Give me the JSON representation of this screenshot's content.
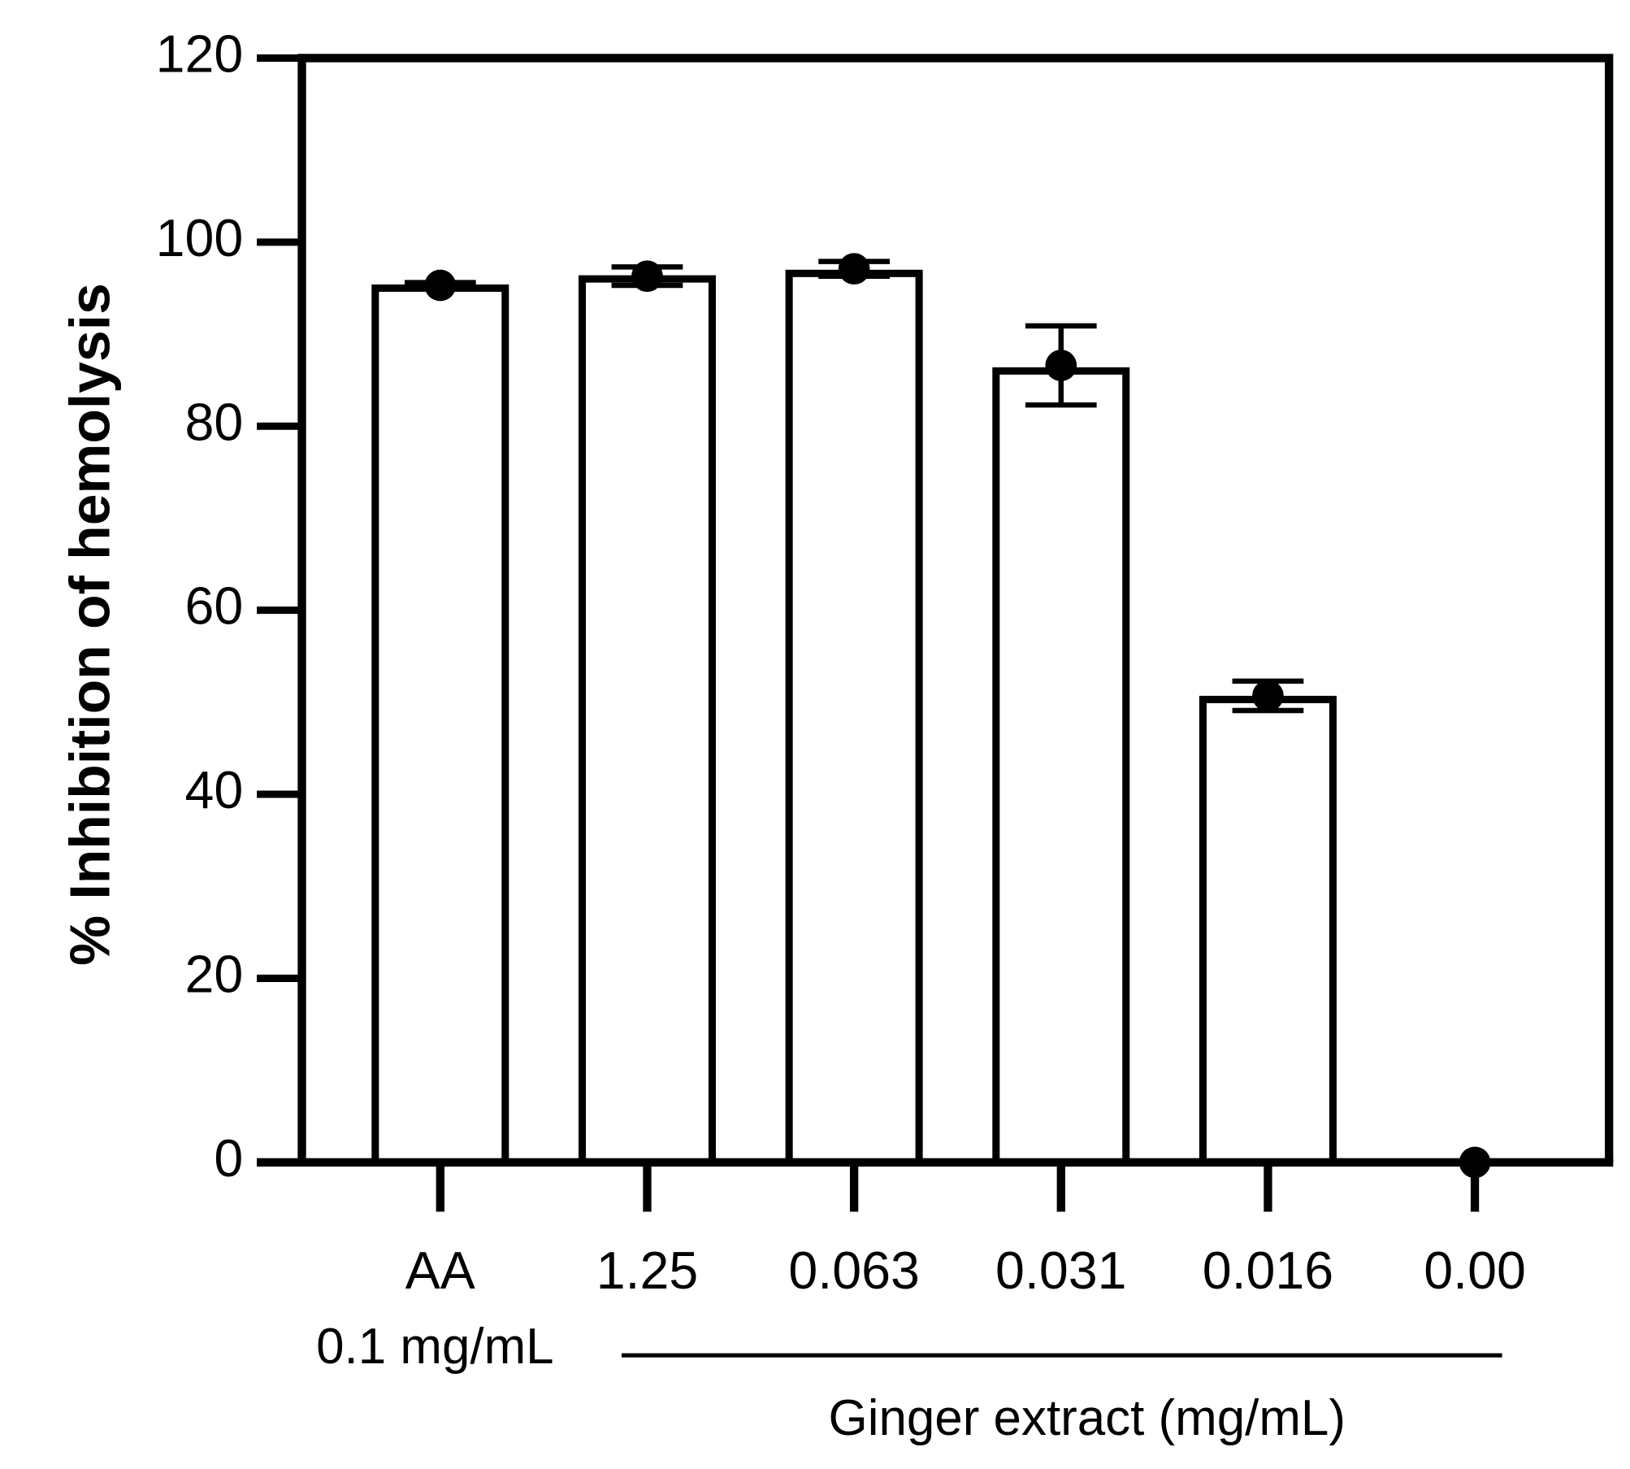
{
  "chart_data": {
    "type": "bar",
    "y_label": "% Inhibition of hemolysis",
    "categories": [
      "AA",
      "1.25",
      "0.063",
      "0.031",
      "0.016",
      "0.00"
    ],
    "values": [
      95,
      96,
      96.6,
      86,
      50.3,
      0
    ],
    "points": [
      95.3,
      96.3,
      97.1,
      86.6,
      50.7,
      0
    ],
    "errors": [
      0.3,
      1,
      0.8,
      4.3,
      1.6,
      0
    ],
    "color": "#ffffff",
    "edge_color": "#000000",
    "ylim": [
      0,
      120
    ],
    "yticks": [
      0,
      20,
      40,
      60,
      80,
      100,
      120
    ],
    "annotations": [
      "0.1 mg/mL",
      "Ginger extract (mg/mL)"
    ]
  }
}
